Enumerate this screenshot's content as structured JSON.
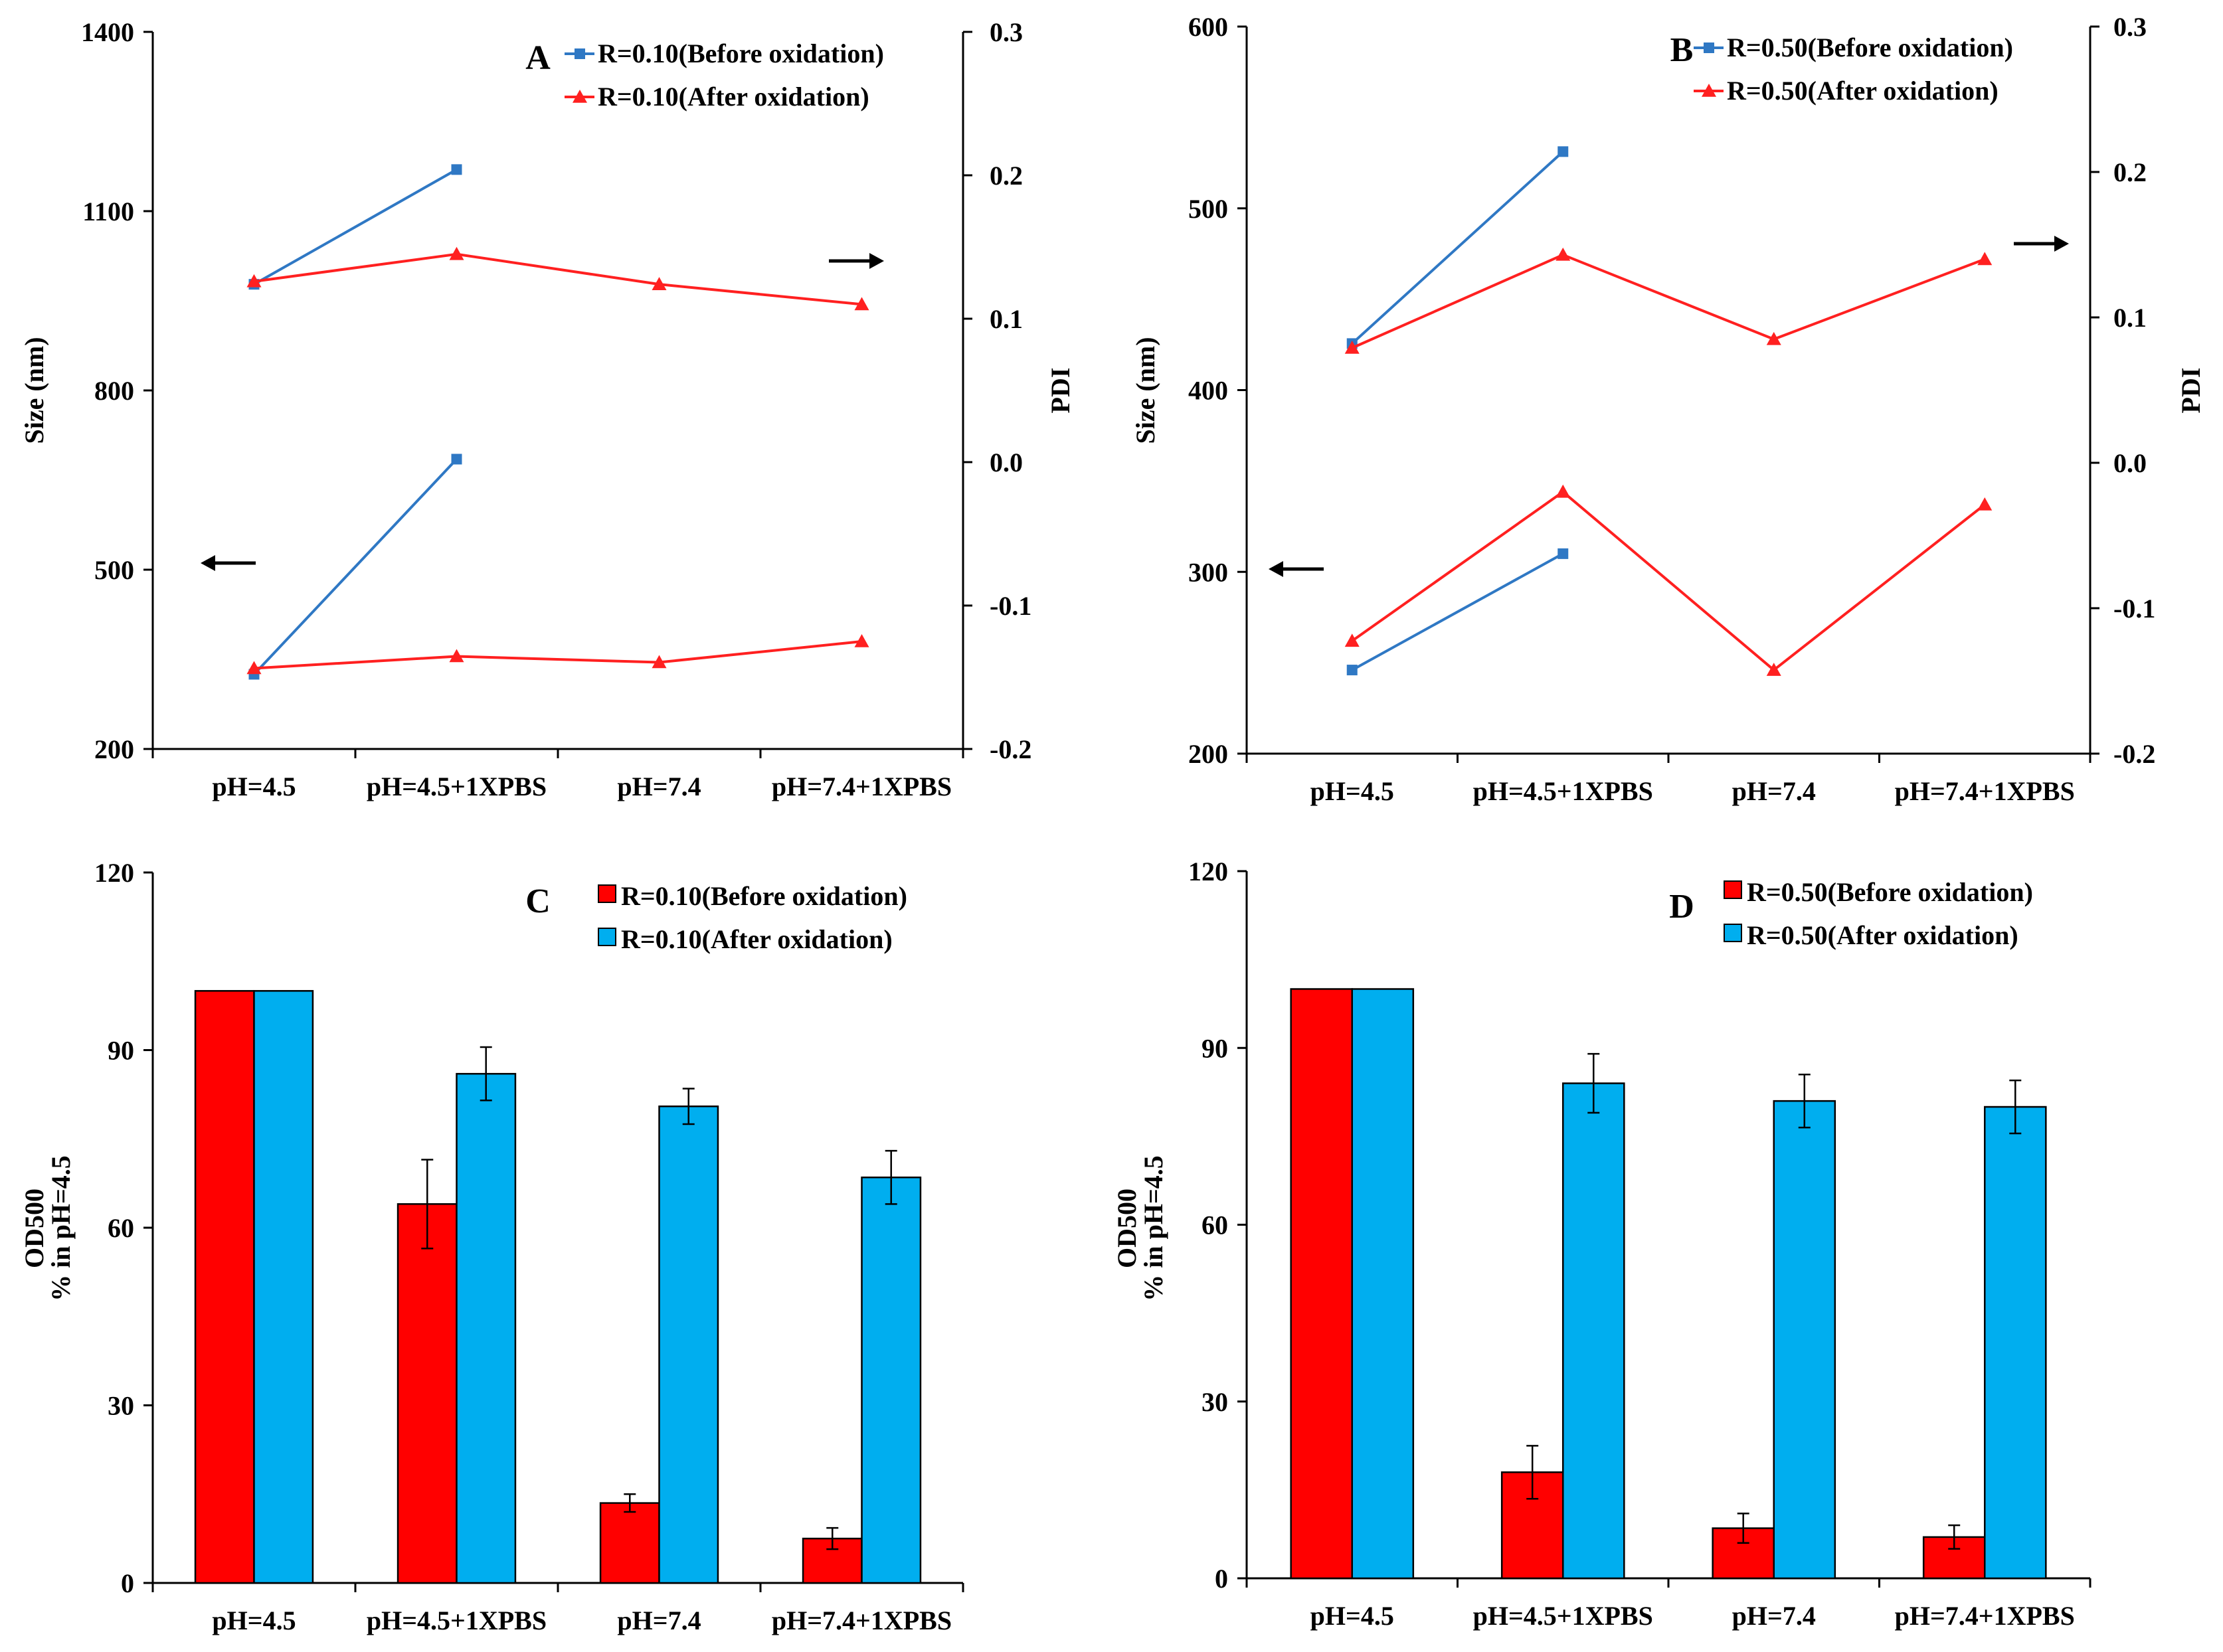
{
  "colors": {
    "blue_line": "#2f78c4",
    "red_line": "#ff2020",
    "red_bar": "#ff0000",
    "blue_bar": "#00aeef",
    "axis": "#000000"
  },
  "chart_data": [
    {
      "type": "line",
      "panel": "A",
      "categories": [
        "pH=4.5",
        "pH=4.5+1XPBS",
        "pH=7.4",
        "pH=7.4+1XPBS"
      ],
      "ylabel": "Size (nm)",
      "ylabel2": "PDI",
      "ylim": [
        200,
        1400
      ],
      "yticks": [
        "200",
        "500",
        "800",
        "1100",
        "1400"
      ],
      "ylim2": [
        -0.2,
        0.3
      ],
      "yticks2": [
        "-0.2",
        "-0.1",
        "0.0",
        "0.1",
        "0.2",
        "0.3"
      ],
      "legend": [
        "R=0.10(Before oxidation)",
        "R=0.10(After oxidation)"
      ],
      "arrows": {
        "left": "←",
        "right": "→"
      },
      "series": [
        {
          "name": "R=0.10(Before oxidation)",
          "axis": "size",
          "color": "#2f78c4",
          "values": [
            325,
            685,
            null,
            null
          ]
        },
        {
          "name": "R=0.10(After oxidation)",
          "axis": "size",
          "color": "#ff2020",
          "values": [
            335,
            355,
            345,
            380
          ]
        },
        {
          "name": "R=0.10(Before oxidation)",
          "axis": "pdi",
          "color": "#2f78c4",
          "values": [
            0.124,
            0.204,
            null,
            null
          ]
        },
        {
          "name": "R=0.10(After oxidation)",
          "axis": "pdi",
          "color": "#ff2020",
          "values": [
            0.126,
            0.145,
            0.124,
            0.11
          ]
        }
      ]
    },
    {
      "type": "line",
      "panel": "B",
      "categories": [
        "pH=4.5",
        "pH=4.5+1XPBS",
        "pH=7.4",
        "pH=7.4+1XPBS"
      ],
      "ylabel": "Size (nm)",
      "ylabel2": "PDI",
      "ylim": [
        200,
        600
      ],
      "yticks": [
        "200",
        "300",
        "400",
        "500",
        "600"
      ],
      "ylim2": [
        -0.2,
        0.3
      ],
      "yticks2": [
        "-0.2",
        "-0.1",
        "0.0",
        "0.1",
        "0.2",
        "0.3"
      ],
      "legend": [
        "R=0.50(Before oxidation)",
        "R=0.50(After oxidation)"
      ],
      "arrows": {
        "left": "←",
        "right": "→"
      },
      "series": [
        {
          "name": "R=0.50(Before oxidation)",
          "axis": "size",
          "color": "#2f78c4",
          "values": [
            246,
            310,
            null,
            null
          ]
        },
        {
          "name": "R=0.50(After oxidation)",
          "axis": "size",
          "color": "#ff2020",
          "values": [
            262,
            344,
            246,
            337
          ]
        },
        {
          "name": "R=0.50(Before oxidation)",
          "axis": "pdi",
          "color": "#2f78c4",
          "values": [
            0.082,
            0.214,
            null,
            null
          ]
        },
        {
          "name": "R=0.50(After oxidation)",
          "axis": "pdi",
          "color": "#ff2020",
          "values": [
            0.079,
            0.143,
            0.085,
            0.14
          ]
        }
      ]
    },
    {
      "type": "bar",
      "panel": "C",
      "categories": [
        "pH=4.5",
        "pH=4.5+1XPBS",
        "pH=7.4",
        "pH=7.4+1XPBS"
      ],
      "ylabel": "OD500",
      "ylabel_line2": "% in pH=4.5",
      "ylim": [
        0,
        120
      ],
      "yticks": [
        "0",
        "30",
        "60",
        "90",
        "120"
      ],
      "legend": [
        "R=0.10(Before oxidation)",
        "R=0.10(After oxidation)"
      ],
      "series": [
        {
          "name": "R=0.10(Before oxidation)",
          "color": "#ff0000",
          "values": [
            100,
            64,
            13.5,
            7.5
          ],
          "errors": [
            0,
            7.5,
            1.5,
            1.8
          ]
        },
        {
          "name": "R=0.10(After oxidation)",
          "color": "#00aeef",
          "values": [
            100,
            86,
            80.5,
            68.5
          ],
          "errors": [
            0,
            4.5,
            3,
            4.5
          ]
        }
      ]
    },
    {
      "type": "bar",
      "panel": "D",
      "categories": [
        "pH=4.5",
        "pH=4.5+1XPBS",
        "pH=7.4",
        "pH=7.4+1XPBS"
      ],
      "ylabel": "OD500",
      "ylabel_line2": "% in pH=4.5",
      "ylim": [
        0,
        120
      ],
      "yticks": [
        "0",
        "30",
        "60",
        "90",
        "120"
      ],
      "legend": [
        "R=0.50(Before oxidation)",
        "R=0.50(After oxidation)"
      ],
      "series": [
        {
          "name": "R=0.50(Before oxidation)",
          "color": "#ff0000",
          "values": [
            100,
            18,
            8.5,
            7
          ],
          "errors": [
            0,
            4.5,
            2.5,
            2
          ]
        },
        {
          "name": "R=0.50(After oxidation)",
          "color": "#00aeef",
          "values": [
            100,
            84,
            81,
            80
          ],
          "errors": [
            0,
            5,
            4.5,
            4.5
          ]
        }
      ]
    }
  ]
}
